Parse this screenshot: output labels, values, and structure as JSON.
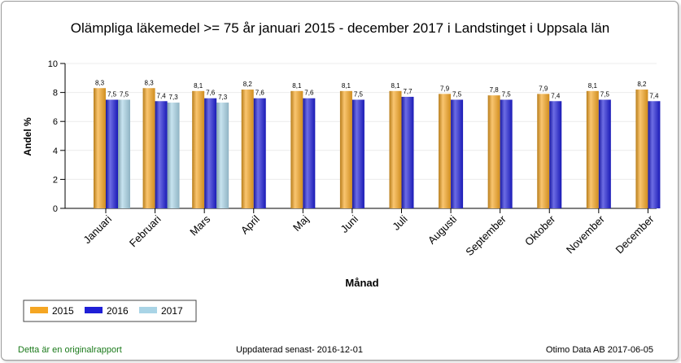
{
  "chart_data": {
    "type": "bar",
    "title": "Olämpliga läkemedel >= 75 år januari 2015 - december 2017 i Landstinget i Uppsala län",
    "xlabel": "Månad",
    "ylabel": "Andel %",
    "ylim": [
      0,
      10
    ],
    "yticks": [
      "0",
      "2",
      "4",
      "6",
      "8",
      "10"
    ],
    "grid": true,
    "legend_position": "bottom-left",
    "categories": [
      "Januari",
      "Februari",
      "Mars",
      "April",
      "Maj",
      "Juni",
      "Juli",
      "Augusti",
      "September",
      "Oktober",
      "November",
      "December"
    ],
    "series": [
      {
        "name": "2015",
        "color": "#f5a623",
        "values": [
          8.3,
          8.3,
          8.1,
          8.2,
          8.1,
          8.1,
          8.1,
          7.9,
          7.8,
          7.9,
          8.1,
          8.2
        ],
        "labels": [
          "8,3",
          "8,3",
          "8,1",
          "8,2",
          "8,1",
          "8,1",
          "8,1",
          "7,9",
          "7,8",
          "7,9",
          "8,1",
          "8,2"
        ]
      },
      {
        "name": "2016",
        "color": "#1f1fd6",
        "values": [
          7.5,
          7.4,
          7.6,
          7.6,
          7.6,
          7.5,
          7.7,
          7.5,
          7.5,
          7.4,
          7.5,
          7.4
        ],
        "labels": [
          "7,5",
          "7,4",
          "7,6",
          "7,6",
          "7,6",
          "7,5",
          "7,7",
          "7,5",
          "7,5",
          "7,4",
          "7,5",
          "7,4"
        ]
      },
      {
        "name": "2017",
        "color": "#a9d4e6",
        "values": [
          7.5,
          7.3,
          7.3,
          null,
          null,
          null,
          null,
          null,
          null,
          null,
          null,
          null
        ],
        "labels": [
          "7,5",
          "7,3",
          "7,3",
          "",
          "",
          "",
          "",
          "",
          "",
          "",
          "",
          ""
        ]
      }
    ]
  },
  "footer": {
    "left": "Detta är en originalrapport",
    "middle": "Uppdaterad senast- 2016-12-01",
    "right": "Otimo Data AB 2017-06-05"
  }
}
